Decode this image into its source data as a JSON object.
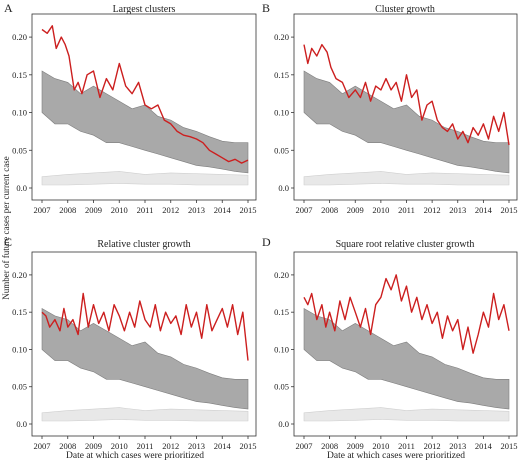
{
  "figure": {
    "y_label": "Number of future cases per current case",
    "x_label": "Date at which cases were prioritized"
  },
  "colors": {
    "observed": "#cc1f1f",
    "null_band": "#a9a9a9",
    "null_band_edge": "#7e7e7e",
    "baseline_band": "#e8e8e8",
    "baseline_edge": "#cfcfcf"
  },
  "chart_data": [
    {
      "type": "area",
      "letter": "A",
      "title": "Largest clusters",
      "xlim": [
        2007,
        2015
      ],
      "ylim": [
        0,
        0.22
      ],
      "xticks": [
        "2007",
        "2008",
        "2009",
        "2010",
        "2011",
        "2012",
        "2013",
        "2014",
        "2015"
      ],
      "yticks": [
        "0.0",
        "0.05",
        "0.10",
        "0.15",
        "0.20"
      ],
      "series": [
        {
          "role": "observed",
          "x": [
            2007.0,
            2007.2,
            2007.4,
            2007.55,
            2007.75,
            2007.9,
            2008.05,
            2008.25,
            2008.4,
            2008.55,
            2008.75,
            2009.0,
            2009.25,
            2009.5,
            2009.75,
            2010.0,
            2010.25,
            2010.5,
            2010.75,
            2011.0,
            2011.25,
            2011.5,
            2011.75,
            2012.0,
            2012.25,
            2012.5,
            2012.75,
            2013.0,
            2013.25,
            2013.5,
            2013.75,
            2014.0,
            2014.25,
            2014.5,
            2014.75,
            2015.0
          ],
          "y": [
            0.21,
            0.205,
            0.215,
            0.185,
            0.2,
            0.19,
            0.175,
            0.13,
            0.14,
            0.125,
            0.15,
            0.155,
            0.12,
            0.145,
            0.13,
            0.165,
            0.135,
            0.125,
            0.14,
            0.11,
            0.105,
            0.11,
            0.09,
            0.085,
            0.075,
            0.07,
            0.068,
            0.065,
            0.06,
            0.05,
            0.045,
            0.04,
            0.035,
            0.038,
            0.033,
            0.037
          ]
        },
        {
          "role": "null-band",
          "x": [
            2007.0,
            2007.5,
            2008.0,
            2008.5,
            2009.0,
            2009.5,
            2010.0,
            2010.5,
            2011.0,
            2011.5,
            2012.0,
            2012.5,
            2013.0,
            2013.5,
            2014.0,
            2014.5,
            2015.0
          ],
          "upper": [
            0.155,
            0.145,
            0.14,
            0.125,
            0.135,
            0.125,
            0.115,
            0.105,
            0.11,
            0.095,
            0.09,
            0.08,
            0.075,
            0.068,
            0.062,
            0.06,
            0.06
          ],
          "lower": [
            0.1,
            0.085,
            0.085,
            0.075,
            0.07,
            0.06,
            0.06,
            0.055,
            0.05,
            0.045,
            0.04,
            0.035,
            0.03,
            0.028,
            0.025,
            0.022,
            0.02
          ]
        },
        {
          "role": "baseline-band",
          "x": [
            2007.0,
            2008.0,
            2009.0,
            2010.0,
            2011.0,
            2012.0,
            2013.0,
            2014.0,
            2015.0
          ],
          "upper": [
            0.015,
            0.018,
            0.02,
            0.022,
            0.018,
            0.02,
            0.019,
            0.018,
            0.017
          ],
          "lower": [
            0.004,
            0.004,
            0.005,
            0.006,
            0.005,
            0.005,
            0.004,
            0.004,
            0.004
          ]
        }
      ]
    },
    {
      "type": "area",
      "letter": "B",
      "title": "Cluster growth",
      "xlim": [
        2007,
        2015
      ],
      "ylim": [
        0,
        0.22
      ],
      "xticks": [
        "2007",
        "2008",
        "2009",
        "2010",
        "2011",
        "2012",
        "2013",
        "2014",
        "2015"
      ],
      "yticks": [
        "0.0",
        "0.05",
        "0.10",
        "0.15",
        "0.20"
      ],
      "series": [
        {
          "role": "observed",
          "x": [
            2007.0,
            2007.15,
            2007.3,
            2007.5,
            2007.7,
            2007.9,
            2008.05,
            2008.25,
            2008.5,
            2008.75,
            2009.0,
            2009.2,
            2009.4,
            2009.6,
            2009.8,
            2010.0,
            2010.2,
            2010.4,
            2010.6,
            2010.8,
            2011.0,
            2011.2,
            2011.4,
            2011.6,
            2011.8,
            2012.0,
            2012.2,
            2012.4,
            2012.6,
            2012.8,
            2013.0,
            2013.2,
            2013.4,
            2013.6,
            2013.8,
            2014.0,
            2014.2,
            2014.4,
            2014.6,
            2014.8,
            2015.0
          ],
          "y": [
            0.19,
            0.165,
            0.185,
            0.175,
            0.19,
            0.18,
            0.16,
            0.145,
            0.14,
            0.12,
            0.13,
            0.12,
            0.14,
            0.115,
            0.135,
            0.13,
            0.145,
            0.13,
            0.14,
            0.115,
            0.15,
            0.12,
            0.13,
            0.09,
            0.11,
            0.115,
            0.09,
            0.08,
            0.075,
            0.085,
            0.065,
            0.075,
            0.06,
            0.08,
            0.07,
            0.085,
            0.065,
            0.095,
            0.075,
            0.1,
            0.057
          ]
        },
        {
          "role": "null-band",
          "x": [
            2007.0,
            2007.5,
            2008.0,
            2008.5,
            2009.0,
            2009.5,
            2010.0,
            2010.5,
            2011.0,
            2011.5,
            2012.0,
            2012.5,
            2013.0,
            2013.5,
            2014.0,
            2014.5,
            2015.0
          ],
          "upper": [
            0.155,
            0.145,
            0.14,
            0.125,
            0.135,
            0.125,
            0.115,
            0.105,
            0.11,
            0.095,
            0.09,
            0.08,
            0.075,
            0.068,
            0.062,
            0.06,
            0.06
          ],
          "lower": [
            0.1,
            0.085,
            0.085,
            0.075,
            0.07,
            0.06,
            0.06,
            0.055,
            0.05,
            0.045,
            0.04,
            0.035,
            0.03,
            0.028,
            0.025,
            0.022,
            0.02
          ]
        },
        {
          "role": "baseline-band",
          "x": [
            2007.0,
            2008.0,
            2009.0,
            2010.0,
            2011.0,
            2012.0,
            2013.0,
            2014.0,
            2015.0
          ],
          "upper": [
            0.015,
            0.018,
            0.02,
            0.022,
            0.018,
            0.02,
            0.019,
            0.018,
            0.017
          ],
          "lower": [
            0.004,
            0.004,
            0.005,
            0.006,
            0.005,
            0.005,
            0.004,
            0.004,
            0.004
          ]
        }
      ]
    },
    {
      "type": "area",
      "letter": "C",
      "title": "Relative cluster growth",
      "xlim": [
        2007,
        2015
      ],
      "ylim": [
        0,
        0.22
      ],
      "xticks": [
        "2007",
        "2008",
        "2009",
        "2010",
        "2011",
        "2012",
        "2013",
        "2014",
        "2015"
      ],
      "yticks": [
        "0.0",
        "0.05",
        "0.10",
        "0.15",
        "0.20"
      ],
      "series": [
        {
          "role": "observed",
          "x": [
            2007.0,
            2007.15,
            2007.3,
            2007.5,
            2007.7,
            2007.85,
            2008.0,
            2008.2,
            2008.4,
            2008.6,
            2008.8,
            2009.0,
            2009.2,
            2009.4,
            2009.6,
            2009.8,
            2010.0,
            2010.2,
            2010.4,
            2010.6,
            2010.8,
            2011.0,
            2011.2,
            2011.4,
            2011.6,
            2011.8,
            2012.0,
            2012.2,
            2012.4,
            2012.6,
            2012.8,
            2013.0,
            2013.2,
            2013.4,
            2013.6,
            2013.8,
            2014.0,
            2014.2,
            2014.4,
            2014.6,
            2014.8,
            2015.0
          ],
          "y": [
            0.15,
            0.145,
            0.13,
            0.14,
            0.125,
            0.155,
            0.13,
            0.14,
            0.12,
            0.175,
            0.13,
            0.16,
            0.135,
            0.15,
            0.125,
            0.16,
            0.145,
            0.125,
            0.15,
            0.13,
            0.165,
            0.14,
            0.13,
            0.16,
            0.125,
            0.15,
            0.135,
            0.145,
            0.12,
            0.16,
            0.13,
            0.15,
            0.115,
            0.16,
            0.125,
            0.14,
            0.155,
            0.13,
            0.16,
            0.12,
            0.15,
            0.085
          ]
        },
        {
          "role": "null-band",
          "x": [
            2007.0,
            2007.5,
            2008.0,
            2008.5,
            2009.0,
            2009.5,
            2010.0,
            2010.5,
            2011.0,
            2011.5,
            2012.0,
            2012.5,
            2013.0,
            2013.5,
            2014.0,
            2014.5,
            2015.0
          ],
          "upper": [
            0.155,
            0.145,
            0.14,
            0.125,
            0.135,
            0.125,
            0.115,
            0.105,
            0.11,
            0.095,
            0.09,
            0.08,
            0.075,
            0.068,
            0.062,
            0.06,
            0.06
          ],
          "lower": [
            0.1,
            0.085,
            0.085,
            0.075,
            0.07,
            0.06,
            0.06,
            0.055,
            0.05,
            0.045,
            0.04,
            0.035,
            0.03,
            0.028,
            0.025,
            0.022,
            0.02
          ]
        },
        {
          "role": "baseline-band",
          "x": [
            2007.0,
            2008.0,
            2009.0,
            2010.0,
            2011.0,
            2012.0,
            2013.0,
            2014.0,
            2015.0
          ],
          "upper": [
            0.015,
            0.018,
            0.02,
            0.022,
            0.018,
            0.02,
            0.019,
            0.018,
            0.017
          ],
          "lower": [
            0.004,
            0.004,
            0.005,
            0.006,
            0.005,
            0.005,
            0.004,
            0.004,
            0.004
          ]
        }
      ]
    },
    {
      "type": "area",
      "letter": "D",
      "title": "Square root relative cluster growth",
      "xlim": [
        2007,
        2015
      ],
      "ylim": [
        0,
        0.22
      ],
      "xticks": [
        "2007",
        "2008",
        "2009",
        "2010",
        "2011",
        "2012",
        "2013",
        "2014",
        "2015"
      ],
      "yticks": [
        "0.0",
        "0.05",
        "0.10",
        "0.15",
        "0.20"
      ],
      "series": [
        {
          "role": "observed",
          "x": [
            2007.0,
            2007.15,
            2007.3,
            2007.5,
            2007.7,
            2007.85,
            2008.0,
            2008.2,
            2008.4,
            2008.6,
            2008.8,
            2009.0,
            2009.2,
            2009.4,
            2009.6,
            2009.8,
            2010.0,
            2010.2,
            2010.4,
            2010.6,
            2010.8,
            2011.0,
            2011.2,
            2011.4,
            2011.6,
            2011.8,
            2012.0,
            2012.2,
            2012.4,
            2012.6,
            2012.8,
            2013.0,
            2013.2,
            2013.4,
            2013.6,
            2013.8,
            2014.0,
            2014.2,
            2014.4,
            2014.6,
            2014.8,
            2015.0
          ],
          "y": [
            0.17,
            0.16,
            0.175,
            0.14,
            0.16,
            0.13,
            0.15,
            0.125,
            0.165,
            0.14,
            0.17,
            0.15,
            0.13,
            0.155,
            0.12,
            0.16,
            0.17,
            0.195,
            0.18,
            0.2,
            0.165,
            0.185,
            0.15,
            0.17,
            0.14,
            0.16,
            0.135,
            0.15,
            0.115,
            0.145,
            0.125,
            0.14,
            0.1,
            0.13,
            0.095,
            0.12,
            0.15,
            0.13,
            0.175,
            0.14,
            0.16,
            0.125
          ]
        },
        {
          "role": "null-band",
          "x": [
            2007.0,
            2007.5,
            2008.0,
            2008.5,
            2009.0,
            2009.5,
            2010.0,
            2010.5,
            2011.0,
            2011.5,
            2012.0,
            2012.5,
            2013.0,
            2013.5,
            2014.0,
            2014.5,
            2015.0
          ],
          "upper": [
            0.155,
            0.145,
            0.14,
            0.125,
            0.135,
            0.125,
            0.115,
            0.105,
            0.11,
            0.095,
            0.09,
            0.08,
            0.075,
            0.068,
            0.062,
            0.06,
            0.06
          ],
          "lower": [
            0.1,
            0.085,
            0.085,
            0.075,
            0.07,
            0.06,
            0.06,
            0.055,
            0.05,
            0.045,
            0.04,
            0.035,
            0.03,
            0.028,
            0.025,
            0.022,
            0.02
          ]
        },
        {
          "role": "baseline-band",
          "x": [
            2007.0,
            2008.0,
            2009.0,
            2010.0,
            2011.0,
            2012.0,
            2013.0,
            2014.0,
            2015.0
          ],
          "upper": [
            0.015,
            0.018,
            0.02,
            0.022,
            0.018,
            0.02,
            0.019,
            0.018,
            0.017
          ],
          "lower": [
            0.004,
            0.004,
            0.005,
            0.006,
            0.005,
            0.005,
            0.004,
            0.004,
            0.004
          ]
        }
      ]
    }
  ]
}
